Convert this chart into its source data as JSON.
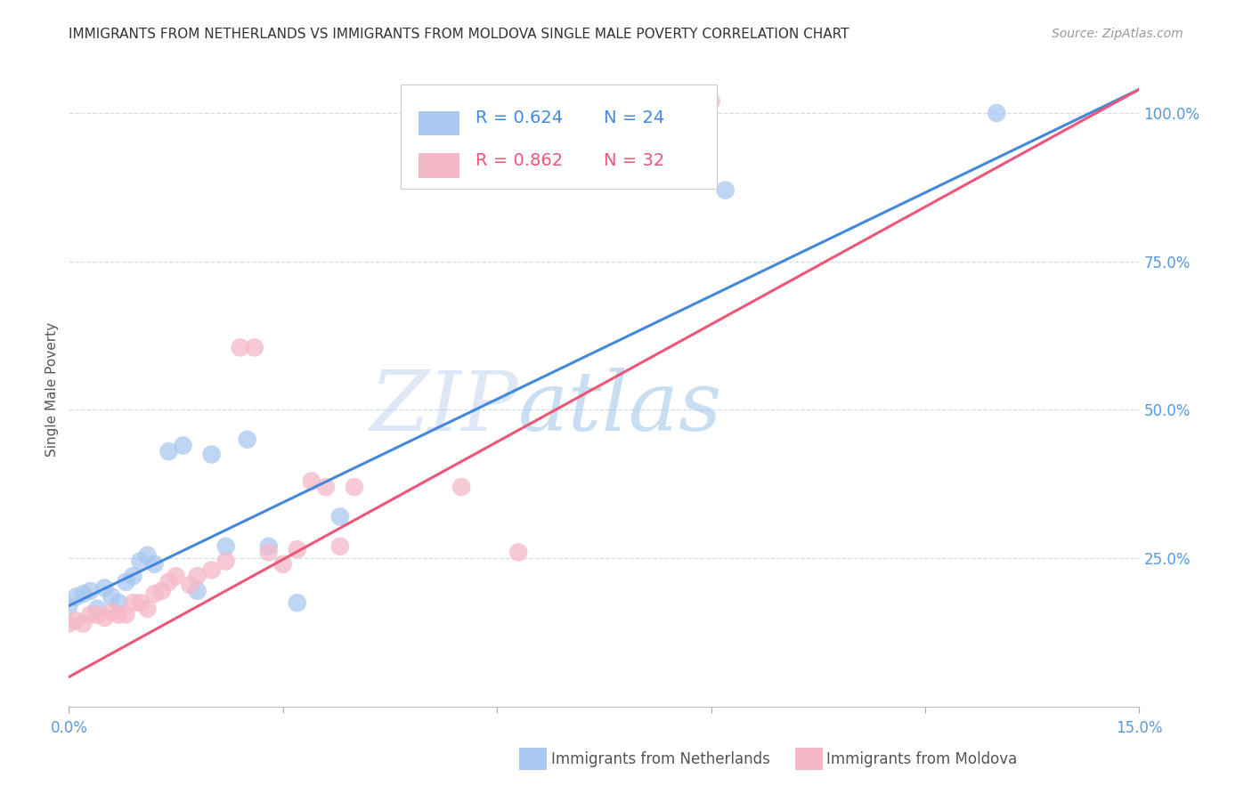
{
  "title": "IMMIGRANTS FROM NETHERLANDS VS IMMIGRANTS FROM MOLDOVA SINGLE MALE POVERTY CORRELATION CHART",
  "source": "Source: ZipAtlas.com",
  "ylabel": "Single Male Poverty",
  "x_min": 0.0,
  "x_max": 0.15,
  "y_min": 0.0,
  "y_max": 1.07,
  "watermark_zip": "ZIP",
  "watermark_atlas": "atlas",
  "blue_color": "#a8c8f0",
  "pink_color": "#f5b8c8",
  "blue_line_color": "#4488dd",
  "pink_line_color": "#ee5577",
  "title_color": "#333333",
  "axis_label_color": "#5599dd",
  "right_tick_color": "#5599dd",
  "netherlands_x": [
    0.0,
    0.001,
    0.002,
    0.003,
    0.004,
    0.005,
    0.006,
    0.007,
    0.008,
    0.009,
    0.01,
    0.011,
    0.012,
    0.014,
    0.016,
    0.018,
    0.02,
    0.022,
    0.025,
    0.028,
    0.032,
    0.038,
    0.092,
    0.13
  ],
  "netherlands_y": [
    0.17,
    0.185,
    0.19,
    0.195,
    0.165,
    0.2,
    0.185,
    0.175,
    0.21,
    0.22,
    0.245,
    0.255,
    0.24,
    0.43,
    0.44,
    0.195,
    0.425,
    0.27,
    0.45,
    0.27,
    0.175,
    0.32,
    0.87,
    1.0
  ],
  "moldova_x": [
    0.0,
    0.001,
    0.002,
    0.003,
    0.004,
    0.005,
    0.006,
    0.007,
    0.008,
    0.009,
    0.01,
    0.011,
    0.012,
    0.013,
    0.014,
    0.015,
    0.017,
    0.018,
    0.02,
    0.022,
    0.024,
    0.026,
    0.028,
    0.03,
    0.032,
    0.034,
    0.036,
    0.038,
    0.04,
    0.055,
    0.063,
    0.09
  ],
  "moldova_y": [
    0.14,
    0.145,
    0.14,
    0.155,
    0.155,
    0.15,
    0.16,
    0.155,
    0.155,
    0.175,
    0.175,
    0.165,
    0.19,
    0.195,
    0.21,
    0.22,
    0.205,
    0.22,
    0.23,
    0.245,
    0.605,
    0.605,
    0.26,
    0.24,
    0.265,
    0.38,
    0.37,
    0.27,
    0.37,
    0.37,
    0.26,
    1.02
  ],
  "nl_line_x": [
    0.0,
    0.15
  ],
  "nl_line_y": [
    0.17,
    1.04
  ],
  "md_line_x": [
    0.0,
    0.15
  ],
  "md_line_y": [
    0.05,
    1.04
  ]
}
